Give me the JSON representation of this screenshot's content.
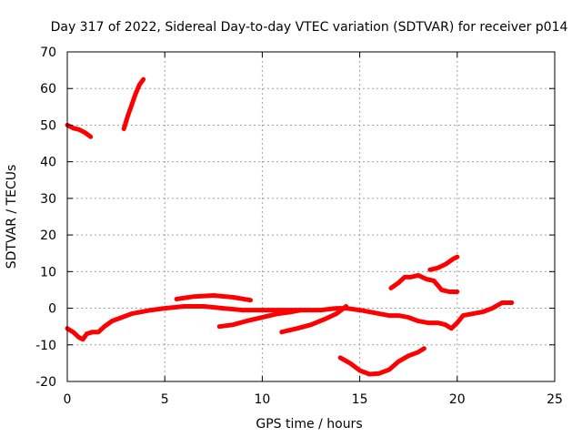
{
  "chart_data": {
    "type": "scatter",
    "title": "Day 317 of 2022, Sidereal Day-to-day VTEC variation (SDTVAR) for receiver p014",
    "xlabel": "GPS time / hours",
    "ylabel": "SDTVAR / TECUs",
    "xlim": [
      0,
      25
    ],
    "ylim": [
      -20,
      70
    ],
    "xticks": [
      0,
      5,
      10,
      15,
      20,
      25
    ],
    "yticks": [
      -20,
      -10,
      0,
      10,
      20,
      30,
      40,
      50,
      60,
      70
    ],
    "grid": true,
    "legend": "none",
    "color": "#ff0000",
    "series": [
      {
        "points": [
          [
            0.0,
            50.0
          ],
          [
            0.3,
            49.2
          ],
          [
            0.6,
            48.8
          ],
          [
            0.9,
            48.0
          ],
          [
            1.2,
            46.8
          ]
        ]
      },
      {
        "points": [
          [
            2.9,
            49.0
          ],
          [
            3.1,
            52.5
          ],
          [
            3.3,
            55.5
          ],
          [
            3.5,
            58.5
          ],
          [
            3.7,
            61.0
          ],
          [
            3.9,
            62.5
          ]
        ]
      },
      {
        "points": [
          [
            0.0,
            -5.5
          ],
          [
            0.3,
            -6.5
          ],
          [
            0.6,
            -8.0
          ],
          [
            0.8,
            -8.5
          ],
          [
            1.0,
            -7.0
          ],
          [
            1.3,
            -6.5
          ],
          [
            1.6,
            -6.5
          ],
          [
            1.9,
            -5.0
          ],
          [
            2.3,
            -3.5
          ],
          [
            2.8,
            -2.5
          ],
          [
            3.3,
            -1.5
          ],
          [
            3.8,
            -1.0
          ],
          [
            4.3,
            -0.5
          ],
          [
            5.0,
            0.0
          ],
          [
            6.0,
            0.5
          ],
          [
            7.0,
            0.5
          ],
          [
            8.0,
            0.0
          ],
          [
            9.0,
            -0.5
          ],
          [
            10.0,
            -0.5
          ],
          [
            11.0,
            -0.5
          ],
          [
            12.0,
            -0.5
          ],
          [
            13.0,
            -0.5
          ],
          [
            13.8,
            0.0
          ],
          [
            14.3,
            0.0
          ],
          [
            15.0,
            -0.5
          ],
          [
            15.5,
            -1.0
          ],
          [
            16.0,
            -1.5
          ],
          [
            16.5,
            -2.0
          ],
          [
            17.0,
            -2.0
          ],
          [
            17.5,
            -2.5
          ],
          [
            18.0,
            -3.5
          ],
          [
            18.5,
            -4.0
          ],
          [
            19.0,
            -4.0
          ],
          [
            19.4,
            -4.5
          ],
          [
            19.7,
            -5.5
          ],
          [
            20.0,
            -4.0
          ],
          [
            20.3,
            -2.0
          ],
          [
            20.8,
            -1.5
          ],
          [
            21.3,
            -1.0
          ],
          [
            21.8,
            0.0
          ],
          [
            22.3,
            1.5
          ],
          [
            22.8,
            1.5
          ]
        ]
      },
      {
        "points": [
          [
            5.6,
            2.5
          ],
          [
            6.5,
            3.2
          ],
          [
            7.5,
            3.5
          ],
          [
            8.5,
            3.0
          ],
          [
            9.4,
            2.2
          ]
        ]
      },
      {
        "points": [
          [
            7.8,
            -5.0
          ],
          [
            8.5,
            -4.5
          ],
          [
            9.2,
            -3.5
          ],
          [
            10.0,
            -2.5
          ],
          [
            10.8,
            -1.5
          ],
          [
            11.5,
            -1.0
          ],
          [
            12.0,
            -0.5
          ]
        ]
      },
      {
        "points": [
          [
            11.0,
            -6.5
          ],
          [
            11.8,
            -5.5
          ],
          [
            12.5,
            -4.5
          ],
          [
            13.2,
            -3.0
          ],
          [
            13.8,
            -1.5
          ],
          [
            14.3,
            0.5
          ]
        ]
      },
      {
        "points": [
          [
            14.0,
            -13.5
          ],
          [
            14.5,
            -15.0
          ],
          [
            15.0,
            -17.0
          ],
          [
            15.5,
            -18.0
          ],
          [
            16.0,
            -17.8
          ],
          [
            16.5,
            -16.8
          ],
          [
            17.0,
            -14.5
          ],
          [
            17.5,
            -13.0
          ],
          [
            18.0,
            -12.0
          ],
          [
            18.3,
            -11.0
          ]
        ]
      },
      {
        "points": [
          [
            16.6,
            5.5
          ],
          [
            17.0,
            7.0
          ],
          [
            17.3,
            8.5
          ],
          [
            17.6,
            8.5
          ],
          [
            18.0,
            9.0
          ],
          [
            18.4,
            8.0
          ],
          [
            18.8,
            7.5
          ],
          [
            19.2,
            5.0
          ],
          [
            19.6,
            4.5
          ],
          [
            20.0,
            4.5
          ]
        ]
      },
      {
        "points": [
          [
            18.6,
            10.5
          ],
          [
            19.0,
            11.0
          ],
          [
            19.4,
            12.0
          ],
          [
            19.8,
            13.5
          ],
          [
            20.0,
            14.0
          ]
        ]
      }
    ]
  }
}
